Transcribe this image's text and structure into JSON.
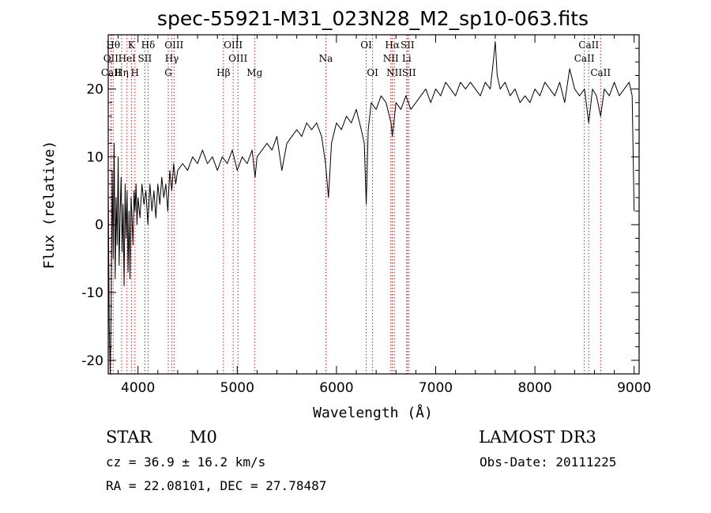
{
  "chart_data": {
    "type": "line",
    "title": "spec-55921-M31_023N28_M2_sp10-063.fits",
    "xlabel": "Wavelength (Å)",
    "ylabel": "Flux (relative)",
    "xlim": [
      3700,
      9050
    ],
    "ylim": [
      -22,
      28
    ],
    "x_ticks": [
      4000,
      5000,
      6000,
      7000,
      8000,
      9000
    ],
    "y_ticks": [
      -20,
      -10,
      0,
      10,
      20
    ],
    "grid": false,
    "series": [
      {
        "name": "flux",
        "points": [
          [
            3700,
            5
          ],
          [
            3710,
            -15
          ],
          [
            3720,
            -22
          ],
          [
            3730,
            -12
          ],
          [
            3740,
            8
          ],
          [
            3750,
            -5
          ],
          [
            3760,
            12
          ],
          [
            3770,
            -8
          ],
          [
            3780,
            4
          ],
          [
            3790,
            -3
          ],
          [
            3800,
            10
          ],
          [
            3810,
            -6
          ],
          [
            3820,
            2
          ],
          [
            3830,
            7
          ],
          [
            3840,
            -4
          ],
          [
            3850,
            3
          ],
          [
            3860,
            -9
          ],
          [
            3870,
            6
          ],
          [
            3880,
            -2
          ],
          [
            3890,
            5
          ],
          [
            3900,
            -7
          ],
          [
            3910,
            2
          ],
          [
            3920,
            -8
          ],
          [
            3930,
            4
          ],
          [
            3940,
            1
          ],
          [
            3950,
            -3
          ],
          [
            3960,
            5
          ],
          [
            3970,
            2
          ],
          [
            3980,
            6
          ],
          [
            3990,
            0
          ],
          [
            4000,
            4
          ],
          [
            4020,
            1
          ],
          [
            4040,
            6
          ],
          [
            4060,
            3
          ],
          [
            4080,
            5
          ],
          [
            4100,
            0
          ],
          [
            4120,
            6
          ],
          [
            4140,
            2
          ],
          [
            4160,
            5
          ],
          [
            4180,
            1
          ],
          [
            4200,
            6
          ],
          [
            4220,
            3
          ],
          [
            4240,
            7
          ],
          [
            4260,
            4
          ],
          [
            4280,
            6
          ],
          [
            4300,
            2
          ],
          [
            4320,
            8
          ],
          [
            4340,
            5
          ],
          [
            4360,
            9
          ],
          [
            4380,
            6
          ],
          [
            4400,
            8
          ],
          [
            4450,
            9
          ],
          [
            4500,
            8
          ],
          [
            4550,
            10
          ],
          [
            4600,
            9
          ],
          [
            4650,
            11
          ],
          [
            4700,
            9
          ],
          [
            4750,
            10
          ],
          [
            4800,
            8
          ],
          [
            4850,
            10
          ],
          [
            4900,
            9
          ],
          [
            4950,
            11
          ],
          [
            5000,
            8
          ],
          [
            5050,
            10
          ],
          [
            5100,
            9
          ],
          [
            5150,
            11
          ],
          [
            5180,
            7
          ],
          [
            5200,
            10
          ],
          [
            5250,
            11
          ],
          [
            5300,
            12
          ],
          [
            5350,
            11
          ],
          [
            5400,
            13
          ],
          [
            5450,
            8
          ],
          [
            5500,
            12
          ],
          [
            5550,
            13
          ],
          [
            5600,
            14
          ],
          [
            5650,
            13
          ],
          [
            5700,
            15
          ],
          [
            5750,
            14
          ],
          [
            5800,
            15
          ],
          [
            5850,
            13
          ],
          [
            5890,
            9
          ],
          [
            5920,
            4
          ],
          [
            5950,
            12
          ],
          [
            6000,
            15
          ],
          [
            6050,
            14
          ],
          [
            6100,
            16
          ],
          [
            6150,
            15
          ],
          [
            6200,
            17
          ],
          [
            6250,
            14
          ],
          [
            6280,
            12
          ],
          [
            6300,
            3
          ],
          [
            6320,
            14
          ],
          [
            6350,
            18
          ],
          [
            6400,
            17
          ],
          [
            6450,
            19
          ],
          [
            6500,
            18
          ],
          [
            6550,
            15
          ],
          [
            6563,
            13
          ],
          [
            6600,
            18
          ],
          [
            6650,
            17
          ],
          [
            6700,
            19
          ],
          [
            6750,
            17
          ],
          [
            6800,
            18
          ],
          [
            6850,
            19
          ],
          [
            6900,
            20
          ],
          [
            6950,
            18
          ],
          [
            7000,
            20
          ],
          [
            7050,
            19
          ],
          [
            7100,
            21
          ],
          [
            7150,
            20
          ],
          [
            7200,
            19
          ],
          [
            7250,
            21
          ],
          [
            7300,
            20
          ],
          [
            7350,
            21
          ],
          [
            7400,
            20
          ],
          [
            7450,
            19
          ],
          [
            7500,
            21
          ],
          [
            7550,
            20
          ],
          [
            7580,
            24
          ],
          [
            7600,
            27
          ],
          [
            7620,
            22
          ],
          [
            7650,
            20
          ],
          [
            7700,
            21
          ],
          [
            7750,
            19
          ],
          [
            7800,
            20
          ],
          [
            7850,
            18
          ],
          [
            7900,
            19
          ],
          [
            7950,
            18
          ],
          [
            8000,
            20
          ],
          [
            8050,
            19
          ],
          [
            8100,
            21
          ],
          [
            8150,
            20
          ],
          [
            8200,
            19
          ],
          [
            8250,
            21
          ],
          [
            8300,
            18
          ],
          [
            8350,
            23
          ],
          [
            8400,
            20
          ],
          [
            8450,
            19
          ],
          [
            8500,
            20
          ],
          [
            8542,
            15
          ],
          [
            8580,
            20
          ],
          [
            8620,
            19
          ],
          [
            8662,
            16
          ],
          [
            8700,
            20
          ],
          [
            8750,
            19
          ],
          [
            8800,
            21
          ],
          [
            8850,
            19
          ],
          [
            8900,
            20
          ],
          [
            8950,
            21
          ],
          [
            8980,
            19
          ],
          [
            9000,
            2
          ]
        ]
      }
    ],
    "lines": [
      {
        "name": "OII",
        "wavelength": 3727,
        "row": 1
      },
      {
        "name": "CaII",
        "wavelength": 3730,
        "row": 2
      },
      {
        "name": "Hθ",
        "wavelength": 3750,
        "row": 0
      },
      {
        "name": "Hη",
        "wavelength": 3835,
        "row": 2
      },
      {
        "name": "HeI",
        "wavelength": 3889,
        "row": 1
      },
      {
        "name": "K",
        "wavelength": 3934,
        "row": 0
      },
      {
        "name": "SII",
        "wavelength": 4069,
        "row": 1
      },
      {
        "name": "H",
        "wavelength": 3969,
        "row": 2
      },
      {
        "name": "Hδ",
        "wavelength": 4102,
        "row": 0
      },
      {
        "name": "OIII",
        "wavelength": 4363,
        "row": 0
      },
      {
        "name": "Hγ",
        "wavelength": 4341,
        "row": 1
      },
      {
        "name": "G",
        "wavelength": 4305,
        "row": 2
      },
      {
        "name": "OIII",
        "wavelength": 4959,
        "row": 0
      },
      {
        "name": "OIII",
        "wavelength": 5007,
        "row": 1
      },
      {
        "name": "Hβ",
        "wavelength": 4861,
        "row": 2
      },
      {
        "name": "Mg",
        "wavelength": 5175,
        "row": 2
      },
      {
        "name": "Na",
        "wavelength": 5893,
        "row": 1
      },
      {
        "name": "OI",
        "wavelength": 6300,
        "row": 0
      },
      {
        "name": "OI",
        "wavelength": 6364,
        "row": 2
      },
      {
        "name": "Hα",
        "wavelength": 6563,
        "row": 0
      },
      {
        "name": "NII",
        "wavelength": 6548,
        "row": 1
      },
      {
        "name": "NII",
        "wavelength": 6583,
        "row": 2
      },
      {
        "name": "SII",
        "wavelength": 6716,
        "row": 0
      },
      {
        "name": "Li",
        "wavelength": 6708,
        "row": 1
      },
      {
        "name": "SII",
        "wavelength": 6731,
        "row": 2
      },
      {
        "name": "CaII",
        "wavelength": 8542,
        "row": 0
      },
      {
        "name": "CaII",
        "wavelength": 8498,
        "row": 1
      },
      {
        "name": "CaII",
        "wavelength": 8662,
        "row": 2
      }
    ]
  },
  "info": {
    "class": "STAR",
    "subclass": "M0",
    "survey": "LAMOST DR3",
    "cz": "cz = 36.9 ± 16.2 km/s",
    "obs_date": "Obs-Date: 20111225",
    "radec": "RA =  22.08101, DEC =  27.78487"
  }
}
